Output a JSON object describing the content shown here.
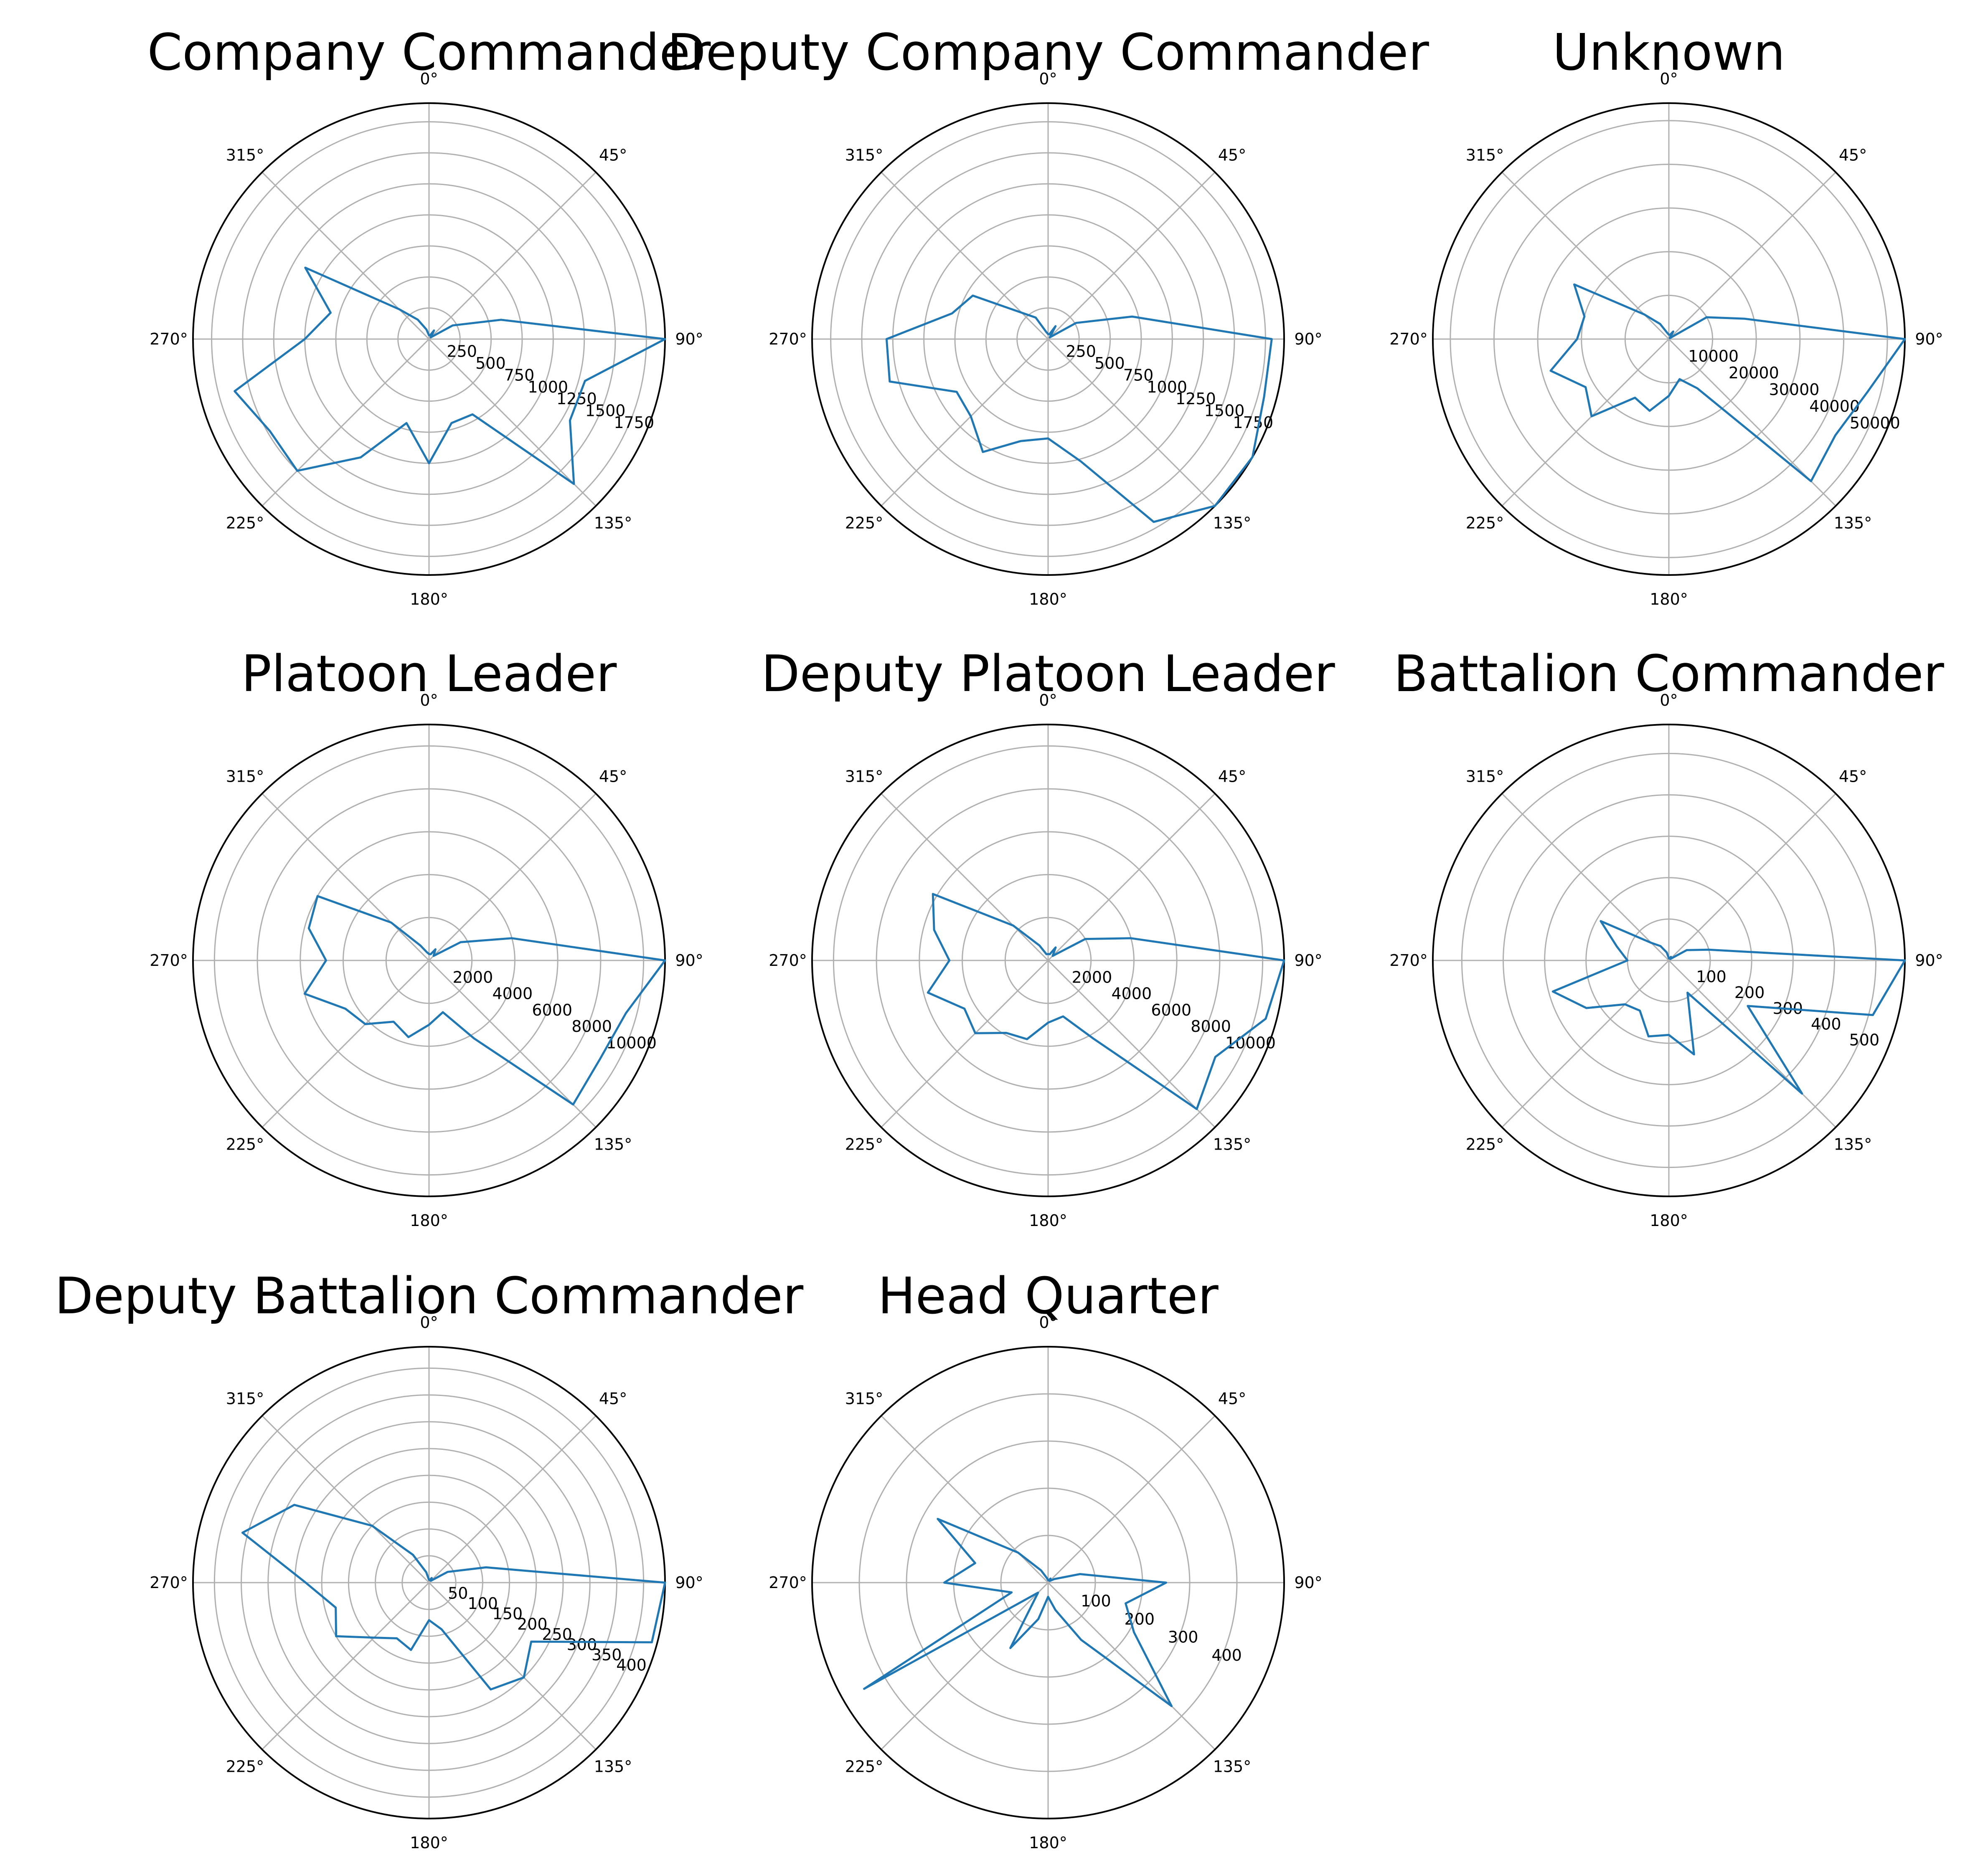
{
  "colors": {
    "line": "#1f77b4",
    "grid": "#b0b0b0",
    "spine": "#000000",
    "background": "#ffffff"
  },
  "chart_data": [
    {
      "type": "line",
      "projection": "polar",
      "theta_zero": "top",
      "theta_direction": "clockwise",
      "title": "Company Commander",
      "theta_ticks": [
        "0°",
        "45°",
        "90°",
        "135°",
        "180°",
        "225°",
        "270°",
        "315°"
      ],
      "r_ticks": [
        "250",
        "500",
        "750",
        "1000",
        "1250",
        "1500",
        "1750"
      ],
      "r_tick_values": [
        250,
        500,
        750,
        1000,
        1250,
        1500,
        1750
      ],
      "rlim": [
        0,
        1900
      ],
      "series": [
        {
          "theta_deg": [
            15,
            30,
            45,
            60,
            75,
            90,
            105,
            120,
            135,
            150,
            165,
            180,
            195,
            210,
            225,
            240,
            255,
            270,
            285,
            300,
            315,
            330,
            345,
            360
          ],
          "r": [
            30,
            80,
            20,
            220,
            600,
            1900,
            1300,
            1310,
            1650,
            700,
            700,
            1000,
            700,
            1100,
            1500,
            1480,
            1620,
            1000,
            820,
            1150,
            340,
            180,
            80,
            30
          ]
        }
      ]
    },
    {
      "type": "line",
      "projection": "polar",
      "theta_zero": "top",
      "theta_direction": "clockwise",
      "title": "Deputy Company Commander",
      "theta_ticks": [
        "0°",
        "45°",
        "90°",
        "135°",
        "180°",
        "225°",
        "270°",
        "315°"
      ],
      "r_ticks": [
        "250",
        "500",
        "750",
        "1000",
        "1250",
        "1500",
        "1750"
      ],
      "r_tick_values": [
        250,
        500,
        750,
        1000,
        1250,
        1500,
        1750
      ],
      "rlim": [
        0,
        1900
      ],
      "series": [
        {
          "theta_deg": [
            15,
            30,
            45,
            60,
            75,
            90,
            105,
            120,
            135,
            150,
            165,
            180,
            195,
            210,
            225,
            240,
            255,
            270,
            285,
            300,
            315,
            330,
            345,
            360
          ],
          "r": [
            40,
            120,
            20,
            260,
            700,
            1800,
            1800,
            1900,
            1900,
            1700,
            1020,
            800,
            850,
            1050,
            880,
            850,
            1320,
            1300,
            800,
            700,
            300,
            200,
            60,
            40
          ]
        }
      ]
    },
    {
      "type": "line",
      "projection": "polar",
      "theta_zero": "top",
      "theta_direction": "clockwise",
      "title": "Unknown",
      "theta_ticks": [
        "0°",
        "45°",
        "90°",
        "135°",
        "180°",
        "225°",
        "270°",
        "315°"
      ],
      "r_ticks": [
        "10000",
        "20000",
        "30000",
        "40000",
        "50000"
      ],
      "r_tick_values": [
        10000,
        20000,
        30000,
        40000,
        50000
      ],
      "rlim": [
        0,
        54000
      ],
      "series": [
        {
          "theta_deg": [
            15,
            30,
            45,
            60,
            75,
            90,
            105,
            120,
            135,
            150,
            165,
            180,
            195,
            210,
            225,
            240,
            255,
            270,
            285,
            300,
            315,
            330,
            345,
            360
          ],
          "r": [
            1000,
            2000,
            300,
            10000,
            18000,
            54000,
            47000,
            44000,
            46000,
            13000,
            9500,
            13000,
            17000,
            15500,
            25000,
            22000,
            28000,
            21000,
            20000,
            25000,
            8000,
            4000,
            1500,
            1000
          ]
        }
      ]
    },
    {
      "type": "line",
      "projection": "polar",
      "theta_zero": "top",
      "theta_direction": "clockwise",
      "title": "Platoon Leader",
      "theta_ticks": [
        "0°",
        "45°",
        "90°",
        "135°",
        "180°",
        "225°",
        "270°",
        "315°"
      ],
      "r_ticks": [
        "2000",
        "4000",
        "6000",
        "8000",
        "10000"
      ],
      "r_tick_values": [
        2000,
        4000,
        6000,
        8000,
        10000
      ],
      "rlim": [
        0,
        11000
      ],
      "series": [
        {
          "theta_deg": [
            15,
            30,
            45,
            60,
            75,
            90,
            105,
            120,
            135,
            150,
            165,
            180,
            195,
            210,
            225,
            240,
            255,
            270,
            285,
            300,
            315,
            330,
            345,
            360
          ],
          "r": [
            300,
            600,
            300,
            1700,
            4000,
            11000,
            9500,
            9200,
            9500,
            4200,
            2500,
            3000,
            3700,
            3300,
            4200,
            4500,
            6000,
            4800,
            5800,
            6000,
            2500,
            800,
            400,
            300
          ]
        }
      ]
    },
    {
      "type": "line",
      "projection": "polar",
      "theta_zero": "top",
      "theta_direction": "clockwise",
      "title": "Deputy Platoon Leader",
      "theta_ticks": [
        "0°",
        "45°",
        "90°",
        "135°",
        "180°",
        "225°",
        "270°",
        "315°"
      ],
      "r_ticks": [
        "2000",
        "4000",
        "6000",
        "8000",
        "10000"
      ],
      "r_tick_values": [
        2000,
        4000,
        6000,
        8000,
        10000
      ],
      "rlim": [
        0,
        11000
      ],
      "series": [
        {
          "theta_deg": [
            15,
            30,
            45,
            60,
            75,
            90,
            105,
            120,
            135,
            150,
            165,
            180,
            195,
            210,
            225,
            240,
            255,
            270,
            285,
            300,
            315,
            330,
            345,
            360
          ],
          "r": [
            300,
            700,
            300,
            2000,
            4000,
            11000,
            10500,
            9000,
            9800,
            4200,
            2700,
            2900,
            3800,
            3900,
            4800,
            4500,
            5800,
            4600,
            5500,
            6200,
            2300,
            800,
            300,
            300
          ]
        }
      ]
    },
    {
      "type": "line",
      "projection": "polar",
      "theta_zero": "top",
      "theta_direction": "clockwise",
      "title": "Battalion Commander",
      "theta_ticks": [
        "0°",
        "45°",
        "90°",
        "135°",
        "180°",
        "225°",
        "270°",
        "315°"
      ],
      "r_ticks": [
        "100",
        "200",
        "300",
        "400",
        "500"
      ],
      "r_tick_values": [
        100,
        200,
        300,
        400,
        500
      ],
      "rlim": [
        0,
        570
      ],
      "series": [
        {
          "theta_deg": [
            15,
            30,
            45,
            60,
            75,
            90,
            105,
            120,
            135,
            150,
            165,
            180,
            195,
            210,
            225,
            240,
            255,
            270,
            285,
            300,
            315,
            330,
            345,
            360
          ],
          "r": [
            5,
            10,
            5,
            50,
            100,
            570,
            510,
            220,
            455,
            90,
            235,
            180,
            190,
            140,
            150,
            230,
            290,
            100,
            130,
            190,
            60,
            40,
            20,
            5
          ]
        }
      ]
    },
    {
      "type": "line",
      "projection": "polar",
      "theta_zero": "top",
      "theta_direction": "clockwise",
      "title": "Deputy Battalion Commander",
      "theta_ticks": [
        "0°",
        "45°",
        "90°",
        "135°",
        "180°",
        "225°",
        "270°",
        "315°"
      ],
      "r_ticks": [
        "50",
        "100",
        "150",
        "200",
        "250",
        "300",
        "350",
        "400"
      ],
      "r_tick_values": [
        50,
        100,
        150,
        200,
        250,
        300,
        350,
        400
      ],
      "rlim": [
        0,
        440
      ],
      "series": [
        {
          "theta_deg": [
            15,
            30,
            45,
            60,
            75,
            90,
            105,
            120,
            135,
            150,
            165,
            180,
            195,
            210,
            225,
            240,
            255,
            270,
            285,
            300,
            315,
            330,
            345,
            360
          ],
          "r": [
            5,
            10,
            5,
            40,
            110,
            440,
            430,
            220,
            250,
            230,
            90,
            70,
            130,
            120,
            145,
            200,
            180,
            230,
            360,
            290,
            150,
            60,
            20,
            5
          ]
        }
      ]
    },
    {
      "type": "line",
      "projection": "polar",
      "theta_zero": "top",
      "theta_direction": "clockwise",
      "title": "Head Quarter",
      "theta_ticks": [
        "0°",
        "45°",
        "90°",
        "135°",
        "180°",
        "225°",
        "270°",
        "315°"
      ],
      "r_ticks": [
        "100",
        "200",
        "300",
        "400"
      ],
      "r_tick_values": [
        100,
        200,
        300,
        400
      ],
      "rlim": [
        0,
        500
      ],
      "series": [
        {
          "theta_deg": [
            15,
            30,
            45,
            60,
            75,
            90,
            105,
            120,
            135,
            150,
            165,
            180,
            195,
            210,
            225,
            240,
            255,
            270,
            285,
            300,
            315,
            330,
            345,
            360
          ],
          "r": [
            5,
            10,
            5,
            15,
            70,
            250,
            170,
            210,
            370,
            140,
            60,
            30,
            80,
            160,
            30,
            450,
            80,
            220,
            160,
            270,
            90,
            30,
            10,
            5
          ]
        }
      ]
    }
  ]
}
